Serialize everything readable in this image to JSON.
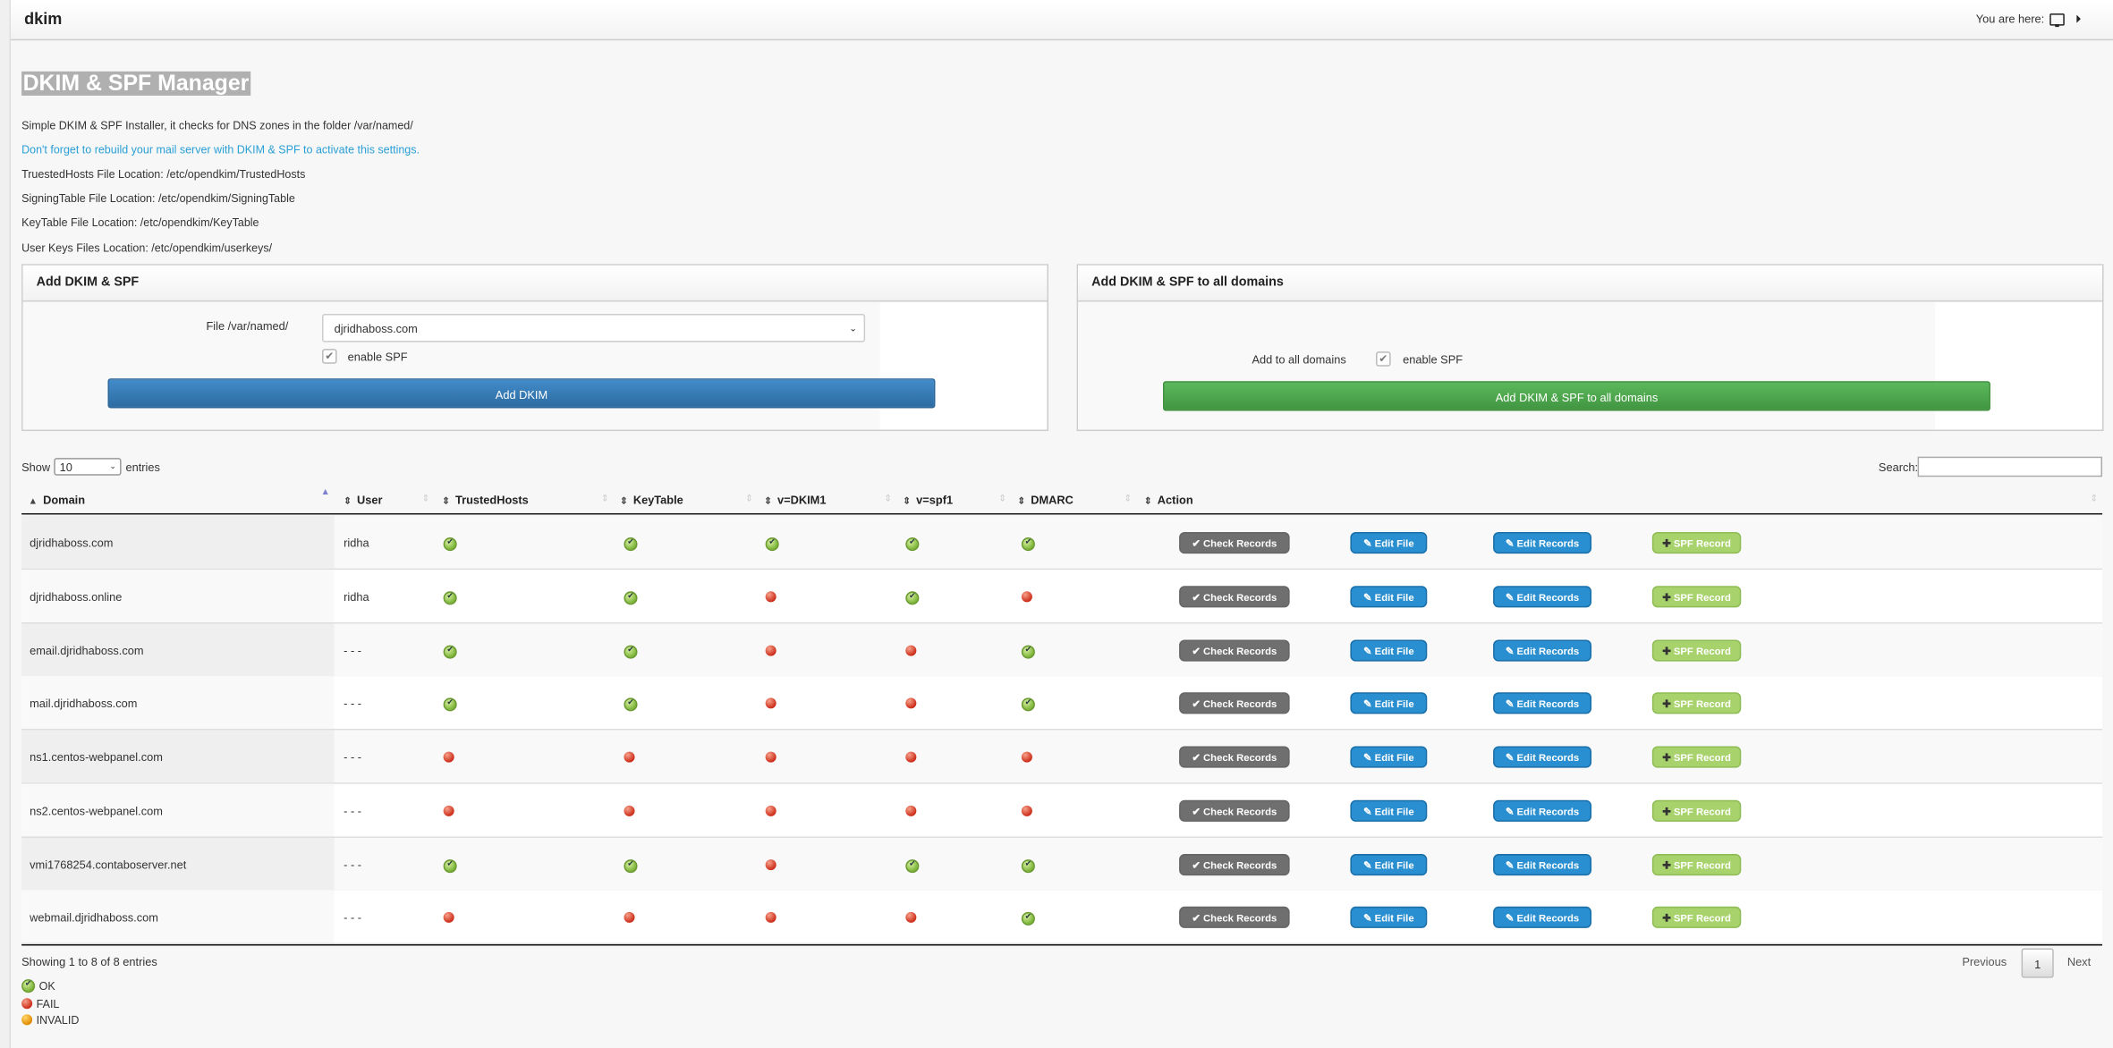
{
  "header": {
    "title": "dkim",
    "breadcrumb_label": "You are here:"
  },
  "page": {
    "title": "DKIM & SPF Manager",
    "info": [
      "Simple DKIM & SPF Installer, it checks for DNS zones in the folder /var/named/",
      "Don't forget to rebuild your mail server with DKIM & SPF to activate this settings.",
      "TruestedHosts File Location: /etc/opendkim/TrustedHosts",
      "SigningTable File Location: /etc/opendkim/SigningTable",
      "KeyTable File Location: /etc/opendkim/KeyTable",
      "User Keys Files Location: /etc/opendkim/userkeys/"
    ]
  },
  "add_panel": {
    "title": "Add DKIM & SPF",
    "file_label": "File /var/named/",
    "file_value": "djridhaboss.com",
    "enable_spf_label": "enable SPF",
    "enable_spf_checked": true,
    "submit_label": "Add DKIM"
  },
  "all_panel": {
    "title": "Add DKIM & SPF to all domains",
    "label": "Add to all domains",
    "enable_spf_label": "enable SPF",
    "enable_spf_checked": true,
    "submit_label": "Add DKIM & SPF to all domains"
  },
  "table": {
    "show_label": "Show",
    "entries_value": "10",
    "entries_label": "entries",
    "search_label": "Search:",
    "search_value": "",
    "columns": [
      "Domain",
      "User",
      "TrustedHosts",
      "KeyTable",
      "v=DKIM1",
      "v=spf1",
      "DMARC",
      "Action"
    ],
    "sorted_column": "Domain",
    "actions": {
      "check": "Check Records",
      "edit_file": "Edit File",
      "edit_records": "Edit Records",
      "spf": "SPF Record"
    },
    "rows": [
      {
        "domain": "djridhaboss.com",
        "user": "ridha",
        "status": [
          "ok",
          "ok",
          "ok",
          "ok",
          "ok"
        ]
      },
      {
        "domain": "djridhaboss.online",
        "user": "ridha",
        "status": [
          "ok",
          "ok",
          "fail",
          "ok",
          "fail"
        ]
      },
      {
        "domain": "email.djridhaboss.com",
        "user": "- - -",
        "status": [
          "ok",
          "ok",
          "fail",
          "fail",
          "ok"
        ]
      },
      {
        "domain": "mail.djridhaboss.com",
        "user": "- - -",
        "status": [
          "ok",
          "ok",
          "fail",
          "fail",
          "ok"
        ]
      },
      {
        "domain": "ns1.centos-webpanel.com",
        "user": "- - -",
        "status": [
          "fail",
          "fail",
          "fail",
          "fail",
          "fail"
        ]
      },
      {
        "domain": "ns2.centos-webpanel.com",
        "user": "- - -",
        "status": [
          "fail",
          "fail",
          "fail",
          "fail",
          "fail"
        ]
      },
      {
        "domain": "vmi1768254.contaboserver.net",
        "user": "- - -",
        "status": [
          "ok",
          "ok",
          "fail",
          "ok",
          "ok"
        ]
      },
      {
        "domain": "webmail.djridhaboss.com",
        "user": "- - -",
        "status": [
          "fail",
          "fail",
          "fail",
          "fail",
          "ok"
        ]
      }
    ],
    "info": "Showing 1 to 8 of 8 entries",
    "pagination": {
      "previous": "Previous",
      "current": "1",
      "next": "Next"
    }
  },
  "legend": [
    {
      "status": "ok",
      "label": "OK"
    },
    {
      "status": "fail",
      "label": "FAIL"
    },
    {
      "status": "invalid",
      "label": "INVALID"
    }
  ]
}
